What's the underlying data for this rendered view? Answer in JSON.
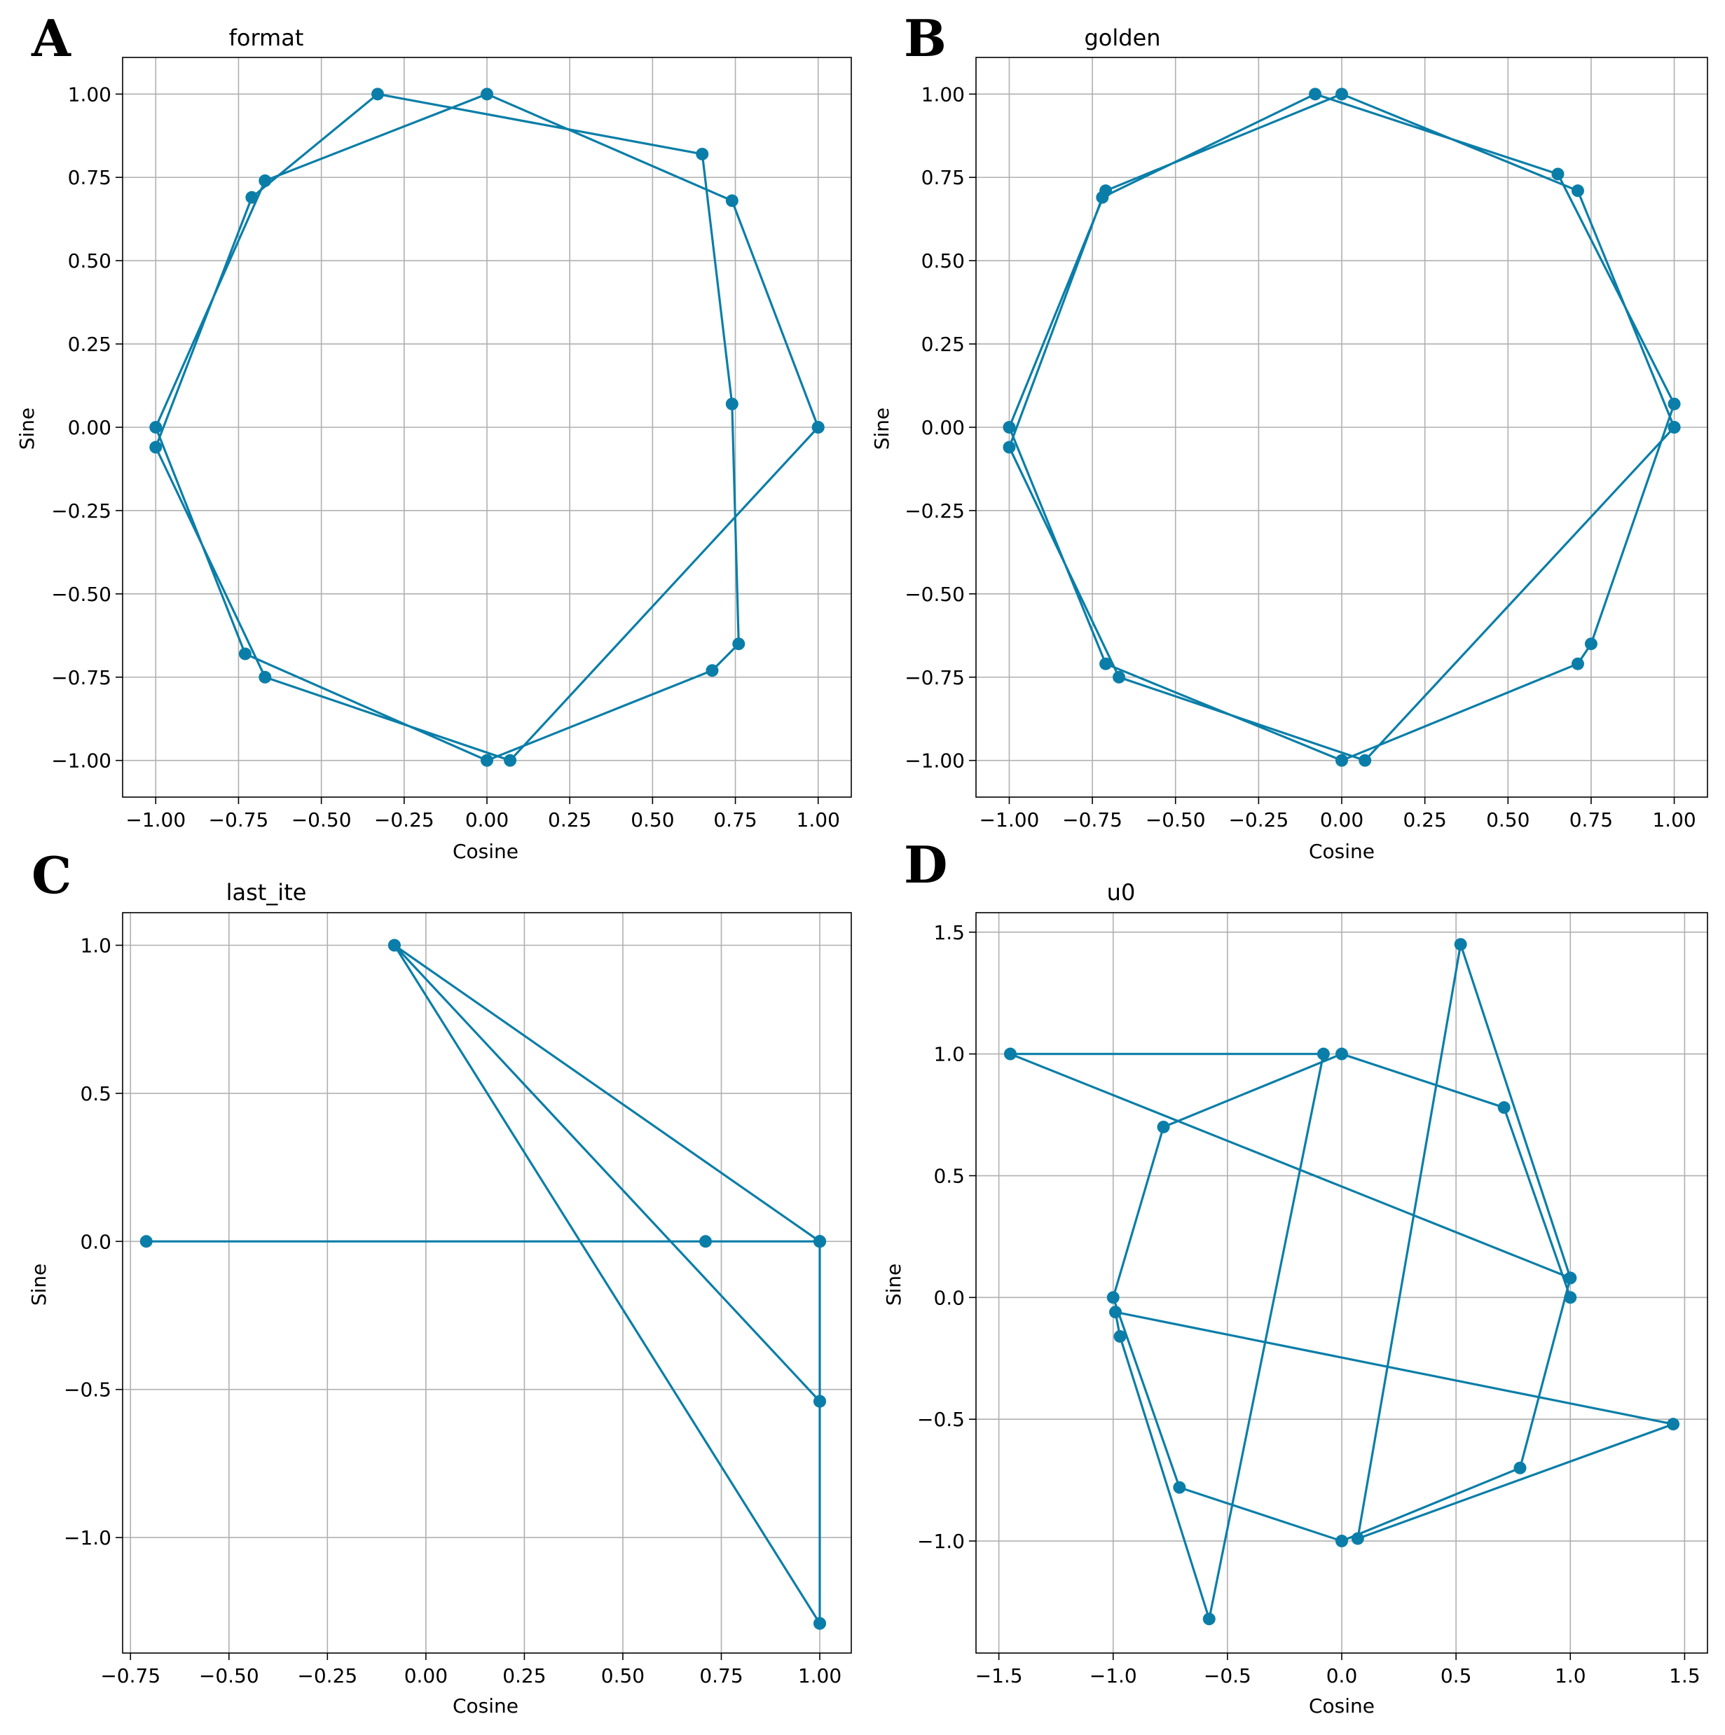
{
  "figure": {
    "marker_color": "#0a7ea8",
    "grid_color": "#b0b0b0"
  },
  "chart_data": [
    {
      "panel": "A",
      "type": "line",
      "title": "format",
      "xlabel": "Cosine",
      "ylabel": "Sine",
      "xlim": [
        -1.1,
        1.1
      ],
      "ylim": [
        -1.11,
        1.11
      ],
      "grid": true,
      "xticks": [
        -1.0,
        -0.75,
        -0.5,
        -0.25,
        0.0,
        0.25,
        0.5,
        0.75,
        1.0
      ],
      "xtick_labels": [
        "−1.00",
        "−0.75",
        "−0.50",
        "−0.25",
        "0.00",
        "0.25",
        "0.50",
        "0.75",
        "1.00"
      ],
      "yticks": [
        -1.0,
        -0.75,
        -0.5,
        -0.25,
        0.0,
        0.25,
        0.5,
        0.75,
        1.0
      ],
      "ytick_labels": [
        "−1.00",
        "−0.75",
        "−0.50",
        "−0.25",
        "0.00",
        "0.25",
        "0.50",
        "0.75",
        "1.00"
      ],
      "series": [
        {
          "name": "format",
          "x": [
            1.0,
            0.74,
            0.0,
            -0.67,
            -1.0,
            -0.73,
            0.0,
            0.68,
            0.76,
            0.74,
            0.65,
            -0.33,
            -0.71,
            -1.0,
            -0.67,
            0.07,
            1.0
          ],
          "y": [
            0.0,
            0.68,
            1.0,
            0.74,
            0.0,
            -0.68,
            -1.0,
            -0.73,
            -0.65,
            0.07,
            0.82,
            1.0,
            0.69,
            -0.06,
            -0.75,
            -1.0,
            0.0
          ]
        }
      ]
    },
    {
      "panel": "B",
      "type": "line",
      "title": "golden",
      "xlabel": "Cosine",
      "ylabel": "Sine",
      "xlim": [
        -1.1,
        1.1
      ],
      "ylim": [
        -1.11,
        1.11
      ],
      "grid": true,
      "xticks": [
        -1.0,
        -0.75,
        -0.5,
        -0.25,
        0.0,
        0.25,
        0.5,
        0.75,
        1.0
      ],
      "xtick_labels": [
        "−1.00",
        "−0.75",
        "−0.50",
        "−0.25",
        "0.00",
        "0.25",
        "0.50",
        "0.75",
        "1.00"
      ],
      "yticks": [
        -1.0,
        -0.75,
        -0.5,
        -0.25,
        0.0,
        0.25,
        0.5,
        0.75,
        1.0
      ],
      "ytick_labels": [
        "−1.00",
        "−0.75",
        "−0.50",
        "−0.25",
        "0.00",
        "0.25",
        "0.50",
        "0.75",
        "1.00"
      ],
      "series": [
        {
          "name": "golden",
          "x": [
            1.0,
            0.71,
            0.0,
            -0.71,
            -1.0,
            -0.71,
            0.0,
            0.71,
            0.75,
            1.0,
            0.65,
            -0.08,
            -0.72,
            -1.0,
            -0.67,
            0.07,
            1.0
          ],
          "y": [
            0.0,
            0.71,
            1.0,
            0.71,
            0.0,
            -0.71,
            -1.0,
            -0.71,
            -0.65,
            0.07,
            0.76,
            1.0,
            0.69,
            -0.06,
            -0.75,
            -1.0,
            0.0
          ]
        }
      ]
    },
    {
      "panel": "C",
      "type": "line",
      "title": "last_ite",
      "xlabel": "Cosine",
      "ylabel": "Sine",
      "xlim": [
        -0.77,
        1.08
      ],
      "ylim": [
        -1.39,
        1.11
      ],
      "grid": true,
      "xticks": [
        -0.75,
        -0.5,
        -0.25,
        0.0,
        0.25,
        0.5,
        0.75,
        1.0
      ],
      "xtick_labels": [
        "−0.75",
        "−0.50",
        "−0.25",
        "0.00",
        "0.25",
        "0.50",
        "0.75",
        "1.00"
      ],
      "yticks": [
        -1.0,
        -0.5,
        0.0,
        0.5,
        1.0
      ],
      "ytick_labels": [
        "−1.0",
        "−0.5",
        "0.0",
        "0.5",
        "1.0"
      ],
      "series": [
        {
          "name": "last_ite",
          "x": [
            -0.71,
            1.0,
            1.0,
            1.0,
            1.0,
            -0.08,
            1.0,
            1.0,
            1.0,
            -0.08,
            1.0,
            0.71,
            1.0
          ],
          "y": [
            0.0,
            0.0,
            0.0,
            -0.54,
            -1.29,
            1.0,
            -0.54,
            0.0,
            -1.29,
            1.0,
            0.0,
            0.0,
            0.0
          ]
        }
      ]
    },
    {
      "panel": "D",
      "type": "line",
      "title": "u0",
      "xlabel": "Cosine",
      "ylabel": "Sine",
      "xlim": [
        -1.6,
        1.6
      ],
      "ylim": [
        -1.46,
        1.58
      ],
      "grid": true,
      "xticks": [
        -1.5,
        -1.0,
        -0.5,
        0.0,
        0.5,
        1.0,
        1.5
      ],
      "xtick_labels": [
        "−1.5",
        "−1.0",
        "−0.5",
        "0.0",
        "0.5",
        "1.0",
        "1.5"
      ],
      "yticks": [
        -1.0,
        -0.5,
        0.0,
        0.5,
        1.0,
        1.5
      ],
      "ytick_labels": [
        "−1.0",
        "−0.5",
        "0.0",
        "0.5",
        "1.0",
        "1.5"
      ],
      "series": [
        {
          "name": "u0",
          "x": [
            1.0,
            0.71,
            0.0,
            -0.78,
            -1.0,
            -0.71,
            0.0,
            0.78,
            1.0,
            -1.45,
            -0.08,
            -0.58,
            -0.97,
            -0.99,
            1.45,
            0.07,
            0.52,
            1.0
          ],
          "y": [
            0.0,
            0.78,
            1.0,
            0.7,
            0.0,
            -0.78,
            -1.0,
            -0.7,
            0.08,
            1.0,
            1.0,
            -1.32,
            -0.16,
            -0.06,
            -0.52,
            -0.99,
            1.45,
            0.08
          ]
        }
      ]
    }
  ]
}
